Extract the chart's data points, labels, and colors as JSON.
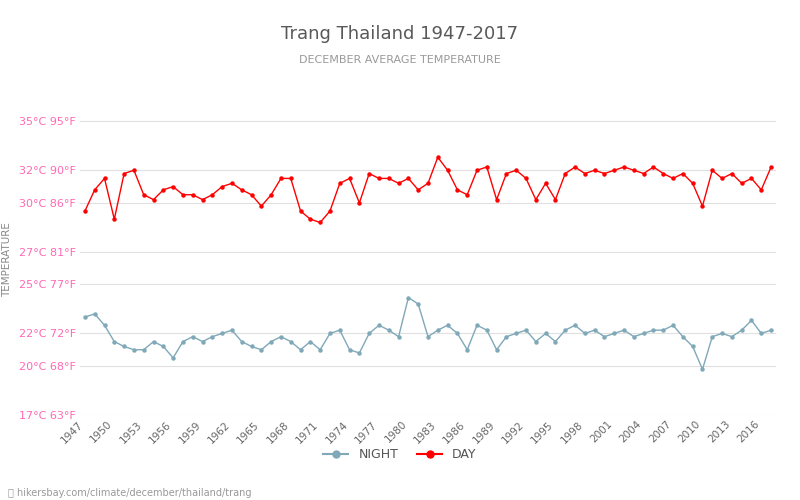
{
  "title": "Trang Thailand 1947-2017",
  "subtitle": "DECEMBER AVERAGE TEMPERATURE",
  "ylabel": "TEMPERATURE",
  "xlabel_url": "hikersbay.com/climate/december/thailand/trang",
  "years": [
    1947,
    1948,
    1949,
    1950,
    1951,
    1952,
    1953,
    1954,
    1955,
    1956,
    1957,
    1958,
    1959,
    1960,
    1961,
    1962,
    1963,
    1964,
    1965,
    1966,
    1967,
    1968,
    1969,
    1970,
    1971,
    1972,
    1973,
    1974,
    1975,
    1976,
    1977,
    1978,
    1979,
    1980,
    1981,
    1982,
    1983,
    1984,
    1985,
    1986,
    1987,
    1988,
    1989,
    1990,
    1991,
    1992,
    1993,
    1994,
    1995,
    1996,
    1997,
    1998,
    1999,
    2000,
    2001,
    2002,
    2003,
    2004,
    2005,
    2006,
    2007,
    2008,
    2009,
    2010,
    2011,
    2012,
    2013,
    2014,
    2015,
    2016,
    2017
  ],
  "day_temps": [
    29.5,
    30.8,
    31.5,
    29.0,
    31.8,
    32.0,
    30.5,
    30.2,
    30.8,
    31.0,
    30.5,
    30.5,
    30.2,
    30.5,
    31.0,
    31.2,
    30.8,
    30.5,
    29.8,
    30.5,
    31.5,
    31.5,
    29.5,
    29.0,
    28.8,
    29.5,
    31.2,
    31.5,
    30.0,
    31.8,
    31.5,
    31.5,
    31.2,
    31.5,
    30.8,
    31.2,
    32.8,
    32.0,
    30.8,
    30.5,
    32.0,
    32.2,
    30.2,
    31.8,
    32.0,
    31.5,
    30.2,
    31.2,
    30.2,
    31.8,
    32.2,
    31.8,
    32.0,
    31.8,
    32.0,
    32.2,
    32.0,
    31.8,
    32.2,
    31.8,
    31.5,
    31.8,
    31.2,
    29.8,
    32.0,
    31.5,
    31.8,
    31.2,
    31.5,
    30.8,
    32.2
  ],
  "night_temps": [
    23.0,
    23.2,
    22.5,
    21.5,
    21.2,
    21.0,
    21.0,
    21.5,
    21.2,
    20.5,
    21.5,
    21.8,
    21.5,
    21.8,
    22.0,
    22.2,
    21.5,
    21.2,
    21.0,
    21.5,
    21.8,
    21.5,
    21.0,
    21.5,
    21.0,
    22.0,
    22.2,
    21.0,
    20.8,
    22.0,
    22.5,
    22.2,
    21.8,
    24.2,
    23.8,
    21.8,
    22.2,
    22.5,
    22.0,
    21.0,
    22.5,
    22.2,
    21.0,
    21.8,
    22.0,
    22.2,
    21.5,
    22.0,
    21.5,
    22.2,
    22.5,
    22.0,
    22.2,
    21.8,
    22.0,
    22.2,
    21.8,
    22.0,
    22.2,
    22.2,
    22.5,
    21.8,
    21.2,
    19.8,
    21.8,
    22.0,
    21.8,
    22.2,
    22.8,
    22.0,
    22.2
  ],
  "day_color": "#ff0000",
  "night_color": "#7fa8b8",
  "title_color": "#595959",
  "subtitle_color": "#999999",
  "label_color": "#ff69b4",
  "ylabel_color": "#888888",
  "bg_color": "#ffffff",
  "grid_color": "#e0e0e0",
  "ylim_min": 17,
  "ylim_max": 36,
  "yticks_c": [
    17,
    20,
    22,
    25,
    27,
    30,
    32,
    35
  ],
  "yticks_f": [
    63,
    68,
    72,
    77,
    81,
    86,
    90,
    95
  ],
  "xtick_years": [
    1947,
    1950,
    1953,
    1956,
    1959,
    1962,
    1965,
    1968,
    1971,
    1974,
    1977,
    1980,
    1983,
    1986,
    1989,
    1992,
    1995,
    1998,
    2001,
    2004,
    2007,
    2010,
    2013,
    2016
  ]
}
